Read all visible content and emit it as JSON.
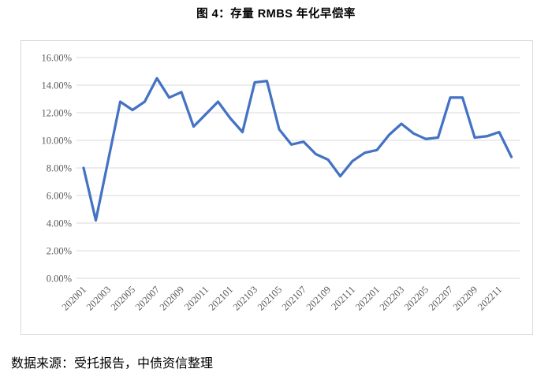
{
  "figure": {
    "title": "图 4：存量 RMBS 年化早偿率",
    "source": "数据来源：受托报告，中债资信整理"
  },
  "chart_data": {
    "type": "line",
    "title": "图 4：存量 RMBS 年化早偿率",
    "x": [
      "202001",
      "202002",
      "202003",
      "202004",
      "202005",
      "202006",
      "202007",
      "202008",
      "202009",
      "202010",
      "202011",
      "202012",
      "202101",
      "202102",
      "202103",
      "202104",
      "202105",
      "202106",
      "202107",
      "202108",
      "202109",
      "202110",
      "202111",
      "202112",
      "202201",
      "202202",
      "202203",
      "202204",
      "202205",
      "202206",
      "202207",
      "202208",
      "202209",
      "202210",
      "202211",
      "202212"
    ],
    "values": [
      8.0,
      4.2,
      8.5,
      12.8,
      12.2,
      12.8,
      14.5,
      13.1,
      13.5,
      11.0,
      11.9,
      12.8,
      11.6,
      10.6,
      14.2,
      14.3,
      10.8,
      9.7,
      9.9,
      9.0,
      8.6,
      7.4,
      8.5,
      9.1,
      9.3,
      10.4,
      11.2,
      10.5,
      10.1,
      10.2,
      13.1,
      13.1,
      10.2,
      10.3,
      10.6,
      8.8
    ],
    "values_unit": "%",
    "x_tick_labels": [
      "202001",
      "202003",
      "202005",
      "202007",
      "202009",
      "202011",
      "202101",
      "202103",
      "202105",
      "202107",
      "202109",
      "202111",
      "202201",
      "202203",
      "202205",
      "202207",
      "202209",
      "202211"
    ],
    "x_tick_every": 2,
    "y_tick_labels": [
      "16.00%",
      "14.00%",
      "12.00%",
      "10.00%",
      "8.00%",
      "6.00%",
      "4.00%",
      "2.00%",
      "0.00%"
    ],
    "ylim": [
      0,
      16
    ],
    "y_step": 2,
    "grid": "horizontal",
    "legend": "none",
    "line_color": "#4472C4",
    "grid_color": "#d9d9d9",
    "tick_label_color": "#595959",
    "xlabel": "",
    "ylabel": ""
  }
}
